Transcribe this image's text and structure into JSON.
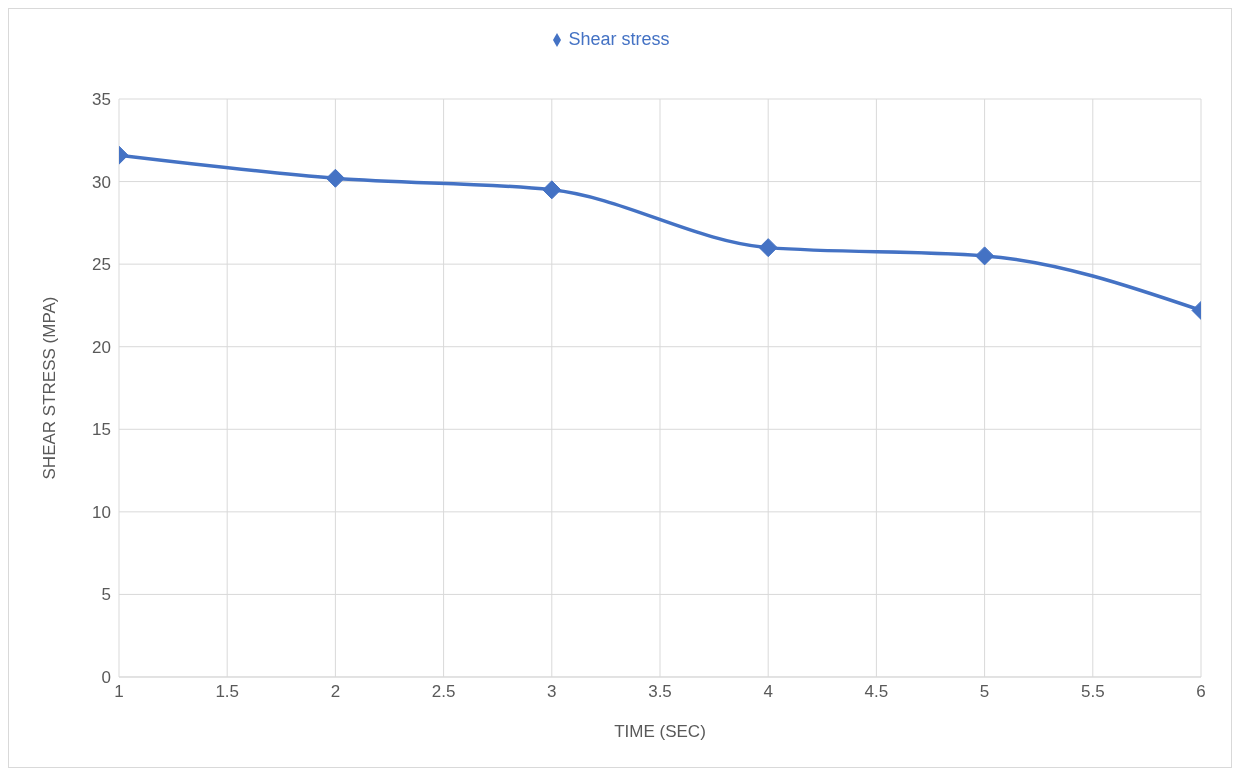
{
  "chart_data": {
    "type": "line",
    "xlabel": "TIME (SEC)",
    "ylabel": "SHEAR STRESS (MPA)",
    "x": [
      1,
      2,
      3,
      4,
      5,
      6
    ],
    "series": [
      {
        "name": "Shear stress",
        "color": "#4472c4",
        "values": [
          31.6,
          30.2,
          29.5,
          26.0,
          25.5,
          22.2
        ]
      }
    ],
    "xlim": [
      1,
      6
    ],
    "xticks": [
      1,
      1.5,
      2,
      2.5,
      3,
      3.5,
      4,
      4.5,
      5,
      5.5,
      6
    ],
    "ylim": [
      0,
      35
    ],
    "yticks": [
      0,
      5,
      10,
      15,
      20,
      25,
      30,
      35
    ],
    "grid": true,
    "legend": "top",
    "marker": "diamond",
    "line_style": "solid"
  }
}
